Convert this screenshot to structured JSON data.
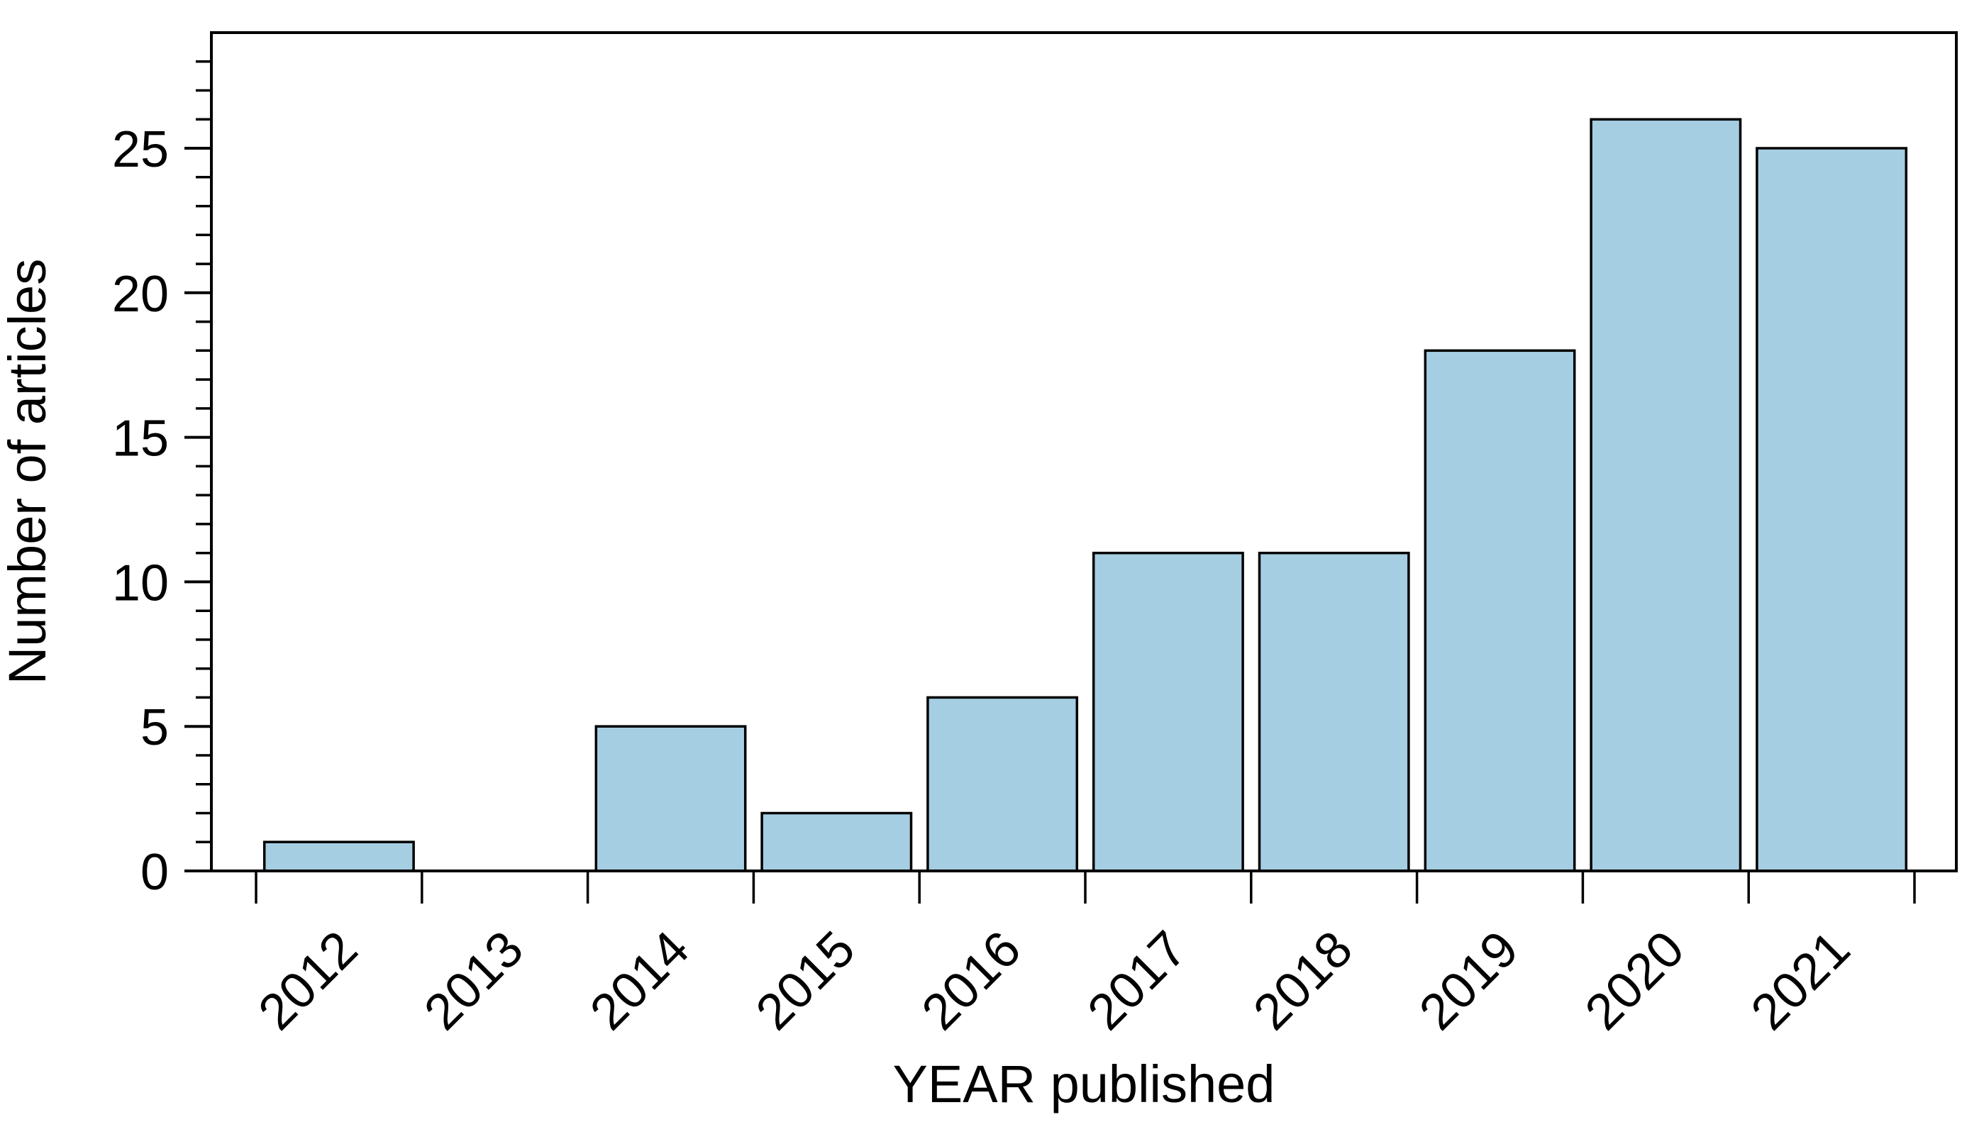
{
  "chart_data": {
    "type": "bar",
    "xlabel": "YEAR published",
    "ylabel": "Number of articles",
    "categories": [
      "2012",
      "2013",
      "2014",
      "2015",
      "2016",
      "2017",
      "2018",
      "2019",
      "2020",
      "2021"
    ],
    "values": [
      1,
      0,
      5,
      2,
      6,
      11,
      11,
      18,
      26,
      25
    ],
    "ylim": [
      0,
      29
    ],
    "y_major_ticks": [
      0,
      5,
      10,
      15,
      20,
      25
    ],
    "y_minor_tick_step": 1,
    "x_tick_positions": "slot-boundaries",
    "x_label_rotation_deg": 45,
    "grid": false,
    "legend": "none",
    "colors": {
      "bar_fill": "#A6CEE3",
      "bar_edge": "#000000",
      "axis": "#000000",
      "text": "#000000",
      "background": "#FFFFFF"
    }
  }
}
